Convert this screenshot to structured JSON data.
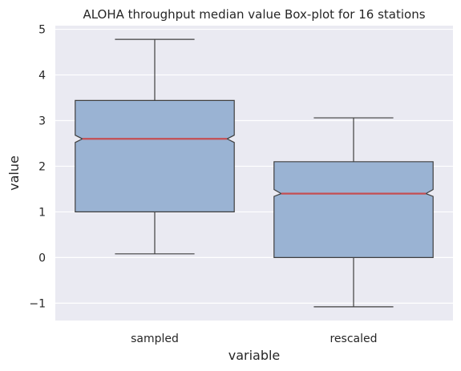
{
  "chart_data": {
    "type": "box",
    "title": "ALOHA throughput median value Box-plot for 16 stations",
    "xlabel": "variable",
    "ylabel": "value",
    "categories": [
      "sampled",
      "rescaled"
    ],
    "boxes": [
      {
        "name": "sampled",
        "whisker_low": 0.08,
        "q1": 1.0,
        "median": 2.6,
        "q3": 3.44,
        "whisker_high": 4.78,
        "notch_low": 2.52,
        "notch_high": 2.68
      },
      {
        "name": "rescaled",
        "whisker_low": -1.08,
        "q1": 0.0,
        "median": 1.4,
        "q3": 2.1,
        "whisker_high": 3.06,
        "notch_low": 1.34,
        "notch_high": 1.49
      }
    ],
    "ylim": [
      -1.38,
      5.08
    ],
    "yticks": [
      -1,
      0,
      1,
      2,
      3,
      4,
      5
    ],
    "ytick_labels": [
      "−1",
      "0",
      "1",
      "2",
      "3",
      "4",
      "5"
    ],
    "grid": true,
    "colors": {
      "box_fill": "#9ab3d3",
      "box_edge": "#3f3f3f",
      "median": "#c44e52",
      "background": "#eaeaf2",
      "grid": "#ffffff"
    }
  }
}
